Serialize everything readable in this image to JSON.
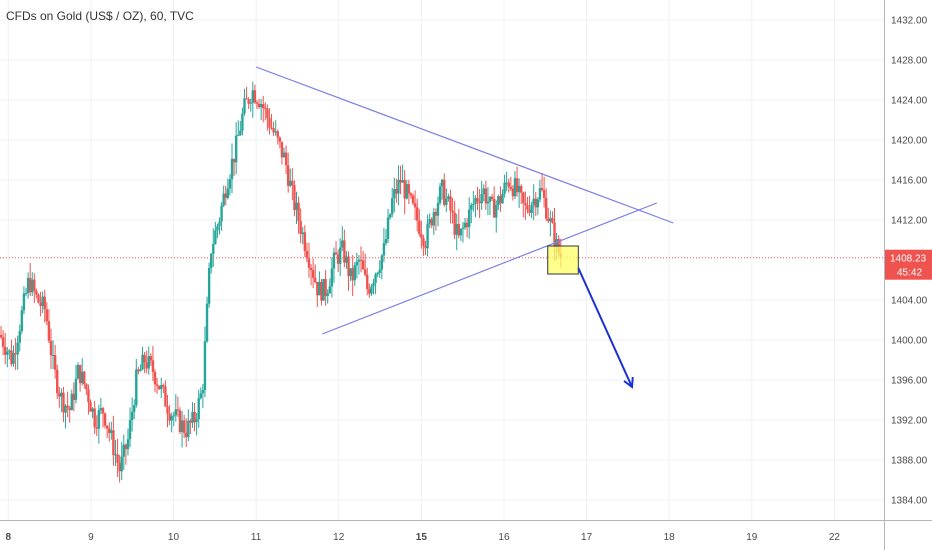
{
  "title": "CFDs on Gold (US$ / OZ), 60, TVC",
  "chart_data": {
    "type": "candlestick",
    "title": "CFDs on Gold (US$ / OZ), 60, TVC",
    "ylim": [
      1382,
      1434
    ],
    "y_ticks": [
      "1432.00",
      "1428.00",
      "1424.00",
      "1420.00",
      "1416.00",
      "1412.00",
      "1404.00",
      "1400.00",
      "1396.00",
      "1392.00",
      "1388.00",
      "1384.00"
    ],
    "x_ticks": [
      {
        "label": "8",
        "x": 8.0,
        "bold": true
      },
      {
        "label": "9",
        "x": 9.0,
        "bold": false
      },
      {
        "label": "10",
        "x": 10.0,
        "bold": false
      },
      {
        "label": "11",
        "x": 11.0,
        "bold": false
      },
      {
        "label": "12",
        "x": 12.0,
        "bold": false
      },
      {
        "label": "15",
        "x": 13.0,
        "bold": true
      },
      {
        "label": "16",
        "x": 14.0,
        "bold": false
      },
      {
        "label": "17",
        "x": 15.0,
        "bold": false
      },
      {
        "label": "18",
        "x": 16.0,
        "bold": false
      },
      {
        "label": "19",
        "x": 17.0,
        "bold": false
      },
      {
        "label": "22",
        "x": 18.0,
        "bold": false
      }
    ],
    "xlim": [
      7.9,
      18.6
    ],
    "price_line": {
      "value": 1408.23,
      "label": "1408.23",
      "timer": "45:42",
      "color": "#ef5350"
    },
    "colors": {
      "up": "#26a69a",
      "down": "#ef5350",
      "trendline": "#7b7fe6",
      "arrow": "#1a2fd6",
      "highlight": "#ffff66",
      "grid": "#eef1f6"
    },
    "ohlc_path": [
      [
        7.9,
        1400.5
      ],
      [
        8.05,
        1398
      ],
      [
        8.15,
        1402
      ],
      [
        8.25,
        1406
      ],
      [
        8.35,
        1404
      ],
      [
        8.45,
        1403
      ],
      [
        8.55,
        1397
      ],
      [
        8.65,
        1394
      ],
      [
        8.75,
        1393
      ],
      [
        8.85,
        1397
      ],
      [
        8.95,
        1395
      ],
      [
        9.05,
        1392
      ],
      [
        9.15,
        1393
      ],
      [
        9.25,
        1390
      ],
      [
        9.35,
        1387
      ],
      [
        9.45,
        1390
      ],
      [
        9.55,
        1396
      ],
      [
        9.65,
        1398
      ],
      [
        9.75,
        1397
      ],
      [
        9.85,
        1395
      ],
      [
        9.95,
        1393
      ],
      [
        10.05,
        1392
      ],
      [
        10.15,
        1391
      ],
      [
        10.25,
        1392
      ],
      [
        10.35,
        1395
      ],
      [
        10.45,
        1409
      ],
      [
        10.55,
        1412
      ],
      [
        10.65,
        1416
      ],
      [
        10.75,
        1419
      ],
      [
        10.85,
        1423
      ],
      [
        10.95,
        1425
      ],
      [
        11.05,
        1424
      ],
      [
        11.15,
        1422
      ],
      [
        11.25,
        1420
      ],
      [
        11.35,
        1418
      ],
      [
        11.45,
        1414
      ],
      [
        11.55,
        1411
      ],
      [
        11.65,
        1408
      ],
      [
        11.75,
        1405
      ],
      [
        11.85,
        1405
      ],
      [
        11.95,
        1408
      ],
      [
        12.05,
        1409
      ],
      [
        12.15,
        1406
      ],
      [
        12.25,
        1408
      ],
      [
        12.35,
        1405
      ],
      [
        12.45,
        1407
      ],
      [
        12.55,
        1409
      ],
      [
        12.65,
        1414
      ],
      [
        12.75,
        1416
      ],
      [
        12.85,
        1414
      ],
      [
        12.95,
        1412
      ],
      [
        13.05,
        1410
      ],
      [
        13.15,
        1413
      ],
      [
        13.25,
        1415
      ],
      [
        13.35,
        1413
      ],
      [
        13.45,
        1410
      ],
      [
        13.55,
        1412
      ],
      [
        13.65,
        1414
      ],
      [
        13.75,
        1415
      ],
      [
        13.85,
        1413
      ],
      [
        13.95,
        1414
      ],
      [
        14.05,
        1416
      ],
      [
        14.15,
        1415
      ],
      [
        14.25,
        1413
      ],
      [
        14.35,
        1414
      ],
      [
        14.45,
        1415
      ],
      [
        14.55,
        1412
      ],
      [
        14.65,
        1409
      ],
      [
        14.7,
        1408.2
      ]
    ],
    "annotations": {
      "upper_trendline": {
        "from": [
          11.0,
          1427.3
        ],
        "to": [
          16.05,
          1411.7
        ]
      },
      "lower_trendline": {
        "from": [
          11.8,
          1400.6
        ],
        "to": [
          15.85,
          1413.7
        ]
      },
      "highlight_box": {
        "from": [
          14.53,
          1406.6
        ],
        "to": [
          14.9,
          1409.4
        ]
      },
      "arrow": {
        "from": [
          14.9,
          1407.2
        ],
        "to": [
          15.55,
          1395.3
        ]
      }
    }
  }
}
